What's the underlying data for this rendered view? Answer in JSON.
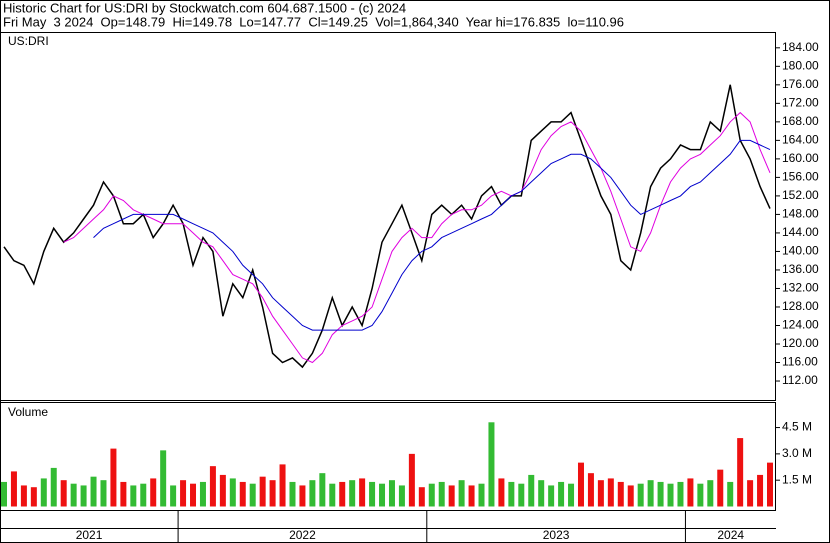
{
  "header": {
    "title": "Historic Chart for US:DRI by Stockwatch.com 604.687.1500 - (c) 2024",
    "quote": "Fri May  3 2024  Op=148.79  Hi=149.78  Lo=147.77  Cl=149.25  Vol=1,864,340  Year hi=176.835  lo=110.96"
  },
  "chart_data": [
    {
      "type": "line",
      "label": "US:DRI",
      "categories": [
        "2021",
        "2021",
        "2021",
        "2021",
        "2021",
        "2021",
        "2021",
        "2021",
        "2021",
        "2021",
        "2021",
        "2021",
        "2021",
        "2021",
        "2021",
        "2021",
        "2021",
        "2021",
        "2022",
        "2022",
        "2022",
        "2022",
        "2022",
        "2022",
        "2022",
        "2022",
        "2022",
        "2022",
        "2022",
        "2022",
        "2022",
        "2022",
        "2022",
        "2022",
        "2022",
        "2022",
        "2022",
        "2022",
        "2022",
        "2022",
        "2022",
        "2022",
        "2022",
        "2023",
        "2023",
        "2023",
        "2023",
        "2023",
        "2023",
        "2023",
        "2023",
        "2023",
        "2023",
        "2023",
        "2023",
        "2023",
        "2023",
        "2023",
        "2023",
        "2023",
        "2023",
        "2023",
        "2023",
        "2023",
        "2023",
        "2023",
        "2023",
        "2023",
        "2023",
        "2024",
        "2024",
        "2024",
        "2024",
        "2024",
        "2024",
        "2024",
        "2024",
        "2024"
      ],
      "series": [
        {
          "color": "#000000",
          "values": [
            141,
            138,
            137,
            133,
            140,
            145,
            142,
            144,
            147,
            150,
            155,
            152,
            146,
            146,
            148,
            143,
            146,
            150,
            146,
            137,
            143,
            140,
            126,
            133,
            130,
            136,
            128,
            118,
            116,
            117,
            115,
            118,
            123,
            130,
            124,
            128,
            124,
            132,
            142,
            146,
            150,
            144,
            138,
            148,
            150,
            148,
            150,
            147,
            152,
            154,
            150,
            152,
            152,
            164,
            166,
            168,
            168,
            170,
            164,
            158,
            152,
            148,
            138,
            136,
            144,
            154,
            158,
            160,
            163,
            162,
            162,
            168,
            166,
            176,
            164,
            160,
            154,
            149.25
          ]
        },
        {
          "color": "#e000e0",
          "values": [
            null,
            null,
            null,
            null,
            null,
            null,
            142,
            143,
            145,
            147,
            149,
            152,
            151,
            149,
            148,
            147,
            146,
            146,
            146,
            144,
            142,
            141,
            138,
            135,
            134,
            133,
            130,
            126,
            123,
            120,
            117,
            116,
            118,
            122,
            124,
            125,
            126,
            128,
            134,
            140,
            143,
            145,
            143,
            143,
            146,
            148,
            149,
            149,
            150,
            152,
            153,
            152,
            153,
            157,
            162,
            165,
            167,
            168,
            166,
            162,
            158,
            153,
            147,
            141,
            140,
            144,
            150,
            155,
            158,
            160,
            161,
            163,
            165,
            168,
            170,
            168,
            162,
            157
          ]
        },
        {
          "color": "#0000cc",
          "values": [
            null,
            null,
            null,
            null,
            null,
            null,
            null,
            null,
            null,
            143,
            145,
            146,
            147,
            148,
            148,
            148,
            148,
            148,
            147,
            146,
            145,
            144,
            142,
            140,
            137,
            135,
            133,
            130,
            128,
            126,
            124,
            123,
            123,
            123,
            123,
            123,
            123,
            124,
            127,
            131,
            135,
            138,
            140,
            141,
            143,
            144,
            145,
            146,
            147,
            148,
            150,
            152,
            153,
            155,
            157,
            159,
            160,
            161,
            161,
            160,
            158,
            156,
            153,
            150,
            148,
            149,
            150,
            151,
            152,
            154,
            155,
            157,
            159,
            161,
            164,
            164,
            163,
            162
          ]
        }
      ],
      "ylim": [
        107.9,
        187.2
      ],
      "yticks": [
        {
          "value": 112,
          "label": "112.00"
        },
        {
          "value": 116,
          "label": "116.00"
        },
        {
          "value": 120,
          "label": "120.00"
        },
        {
          "value": 124,
          "label": "124.00"
        },
        {
          "value": 128,
          "label": "128.00"
        },
        {
          "value": 132,
          "label": "132.00"
        },
        {
          "value": 136,
          "label": "136.00"
        },
        {
          "value": 140,
          "label": "140.00"
        },
        {
          "value": 144,
          "label": "144.00"
        },
        {
          "value": 148,
          "label": "148.00"
        },
        {
          "value": 152,
          "label": "152.00"
        },
        {
          "value": 156,
          "label": "156.00"
        },
        {
          "value": 160,
          "label": "160.00"
        },
        {
          "value": 164,
          "label": "164.00"
        },
        {
          "value": 168,
          "label": "168.00"
        },
        {
          "value": 172,
          "label": "172.00"
        },
        {
          "value": 176,
          "label": "176.00"
        },
        {
          "value": 180,
          "label": "180.00"
        },
        {
          "value": 184,
          "label": "184.00"
        }
      ]
    },
    {
      "type": "bar",
      "label": "Volume",
      "up_color": "#33bb33",
      "down_color": "#ee1111",
      "values": [
        1.4,
        2.0,
        1.2,
        1.1,
        1.6,
        2.2,
        1.5,
        1.3,
        1.2,
        1.7,
        1.5,
        3.3,
        1.4,
        1.2,
        1.3,
        1.6,
        3.2,
        1.2,
        1.5,
        1.3,
        1.4,
        2.3,
        1.8,
        1.6,
        1.4,
        1.3,
        1.7,
        1.5,
        2.4,
        1.4,
        1.2,
        1.5,
        1.9,
        1.3,
        1.4,
        1.5,
        1.6,
        1.4,
        1.3,
        1.5,
        1.2,
        3.0,
        1.1,
        1.3,
        1.4,
        1.2,
        1.5,
        1.2,
        1.3,
        4.8,
        1.6,
        1.4,
        1.3,
        1.8,
        1.5,
        1.2,
        1.4,
        1.3,
        2.5,
        1.9,
        1.5,
        1.6,
        1.4,
        1.2,
        1.3,
        1.5,
        1.4,
        1.3,
        1.4,
        1.6,
        1.3,
        1.5,
        2.1,
        1.4,
        3.9,
        1.5,
        1.8,
        2.5
      ],
      "ylim": [
        -0.2,
        5.9
      ],
      "yticks": [
        {
          "value": 1.5,
          "label": "1.5 M"
        },
        {
          "value": 3.0,
          "label": "3.0 M"
        },
        {
          "value": 4.5,
          "label": "4.5 M"
        }
      ]
    }
  ]
}
